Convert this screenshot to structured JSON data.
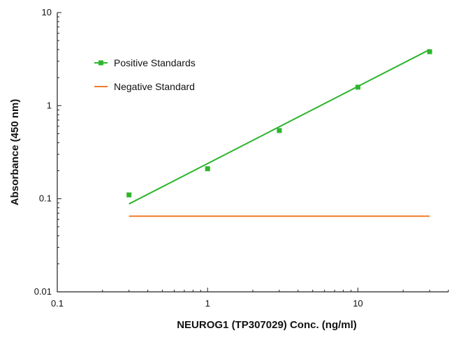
{
  "chart_data": {
    "type": "line",
    "title": "",
    "xlabel": "NEUROG1 (TP307029) Conc. (ng/ml)",
    "ylabel": "Absorbance (450 nm)",
    "xscale": "log",
    "yscale": "log",
    "xlim": [
      0.1,
      40
    ],
    "ylim": [
      0.01,
      10
    ],
    "x_ticks": [
      0.1,
      1,
      10
    ],
    "x_tick_labels": [
      "0.1",
      "1",
      "10"
    ],
    "y_ticks": [
      0.01,
      0.1,
      1,
      10
    ],
    "y_tick_labels": [
      "0.01",
      "0.1",
      "1",
      "10"
    ],
    "grid": false,
    "legend_position": "top-left",
    "series": [
      {
        "name": "Positive Standards",
        "color": "#2db52d",
        "marker": "square",
        "points": [
          {
            "x": 0.3,
            "y": 0.11
          },
          {
            "x": 1,
            "y": 0.21
          },
          {
            "x": 3,
            "y": 0.54
          },
          {
            "x": 10,
            "y": 1.58
          },
          {
            "x": 30,
            "y": 3.8
          }
        ],
        "fit_line": {
          "x": [
            0.3,
            30
          ],
          "y": [
            0.088,
            4.0
          ]
        }
      },
      {
        "name": "Negative Standard",
        "color": "#f07a28",
        "marker": "none",
        "points": [
          {
            "x": 0.3,
            "y": 0.065
          },
          {
            "x": 30,
            "y": 0.065
          }
        ]
      }
    ]
  }
}
